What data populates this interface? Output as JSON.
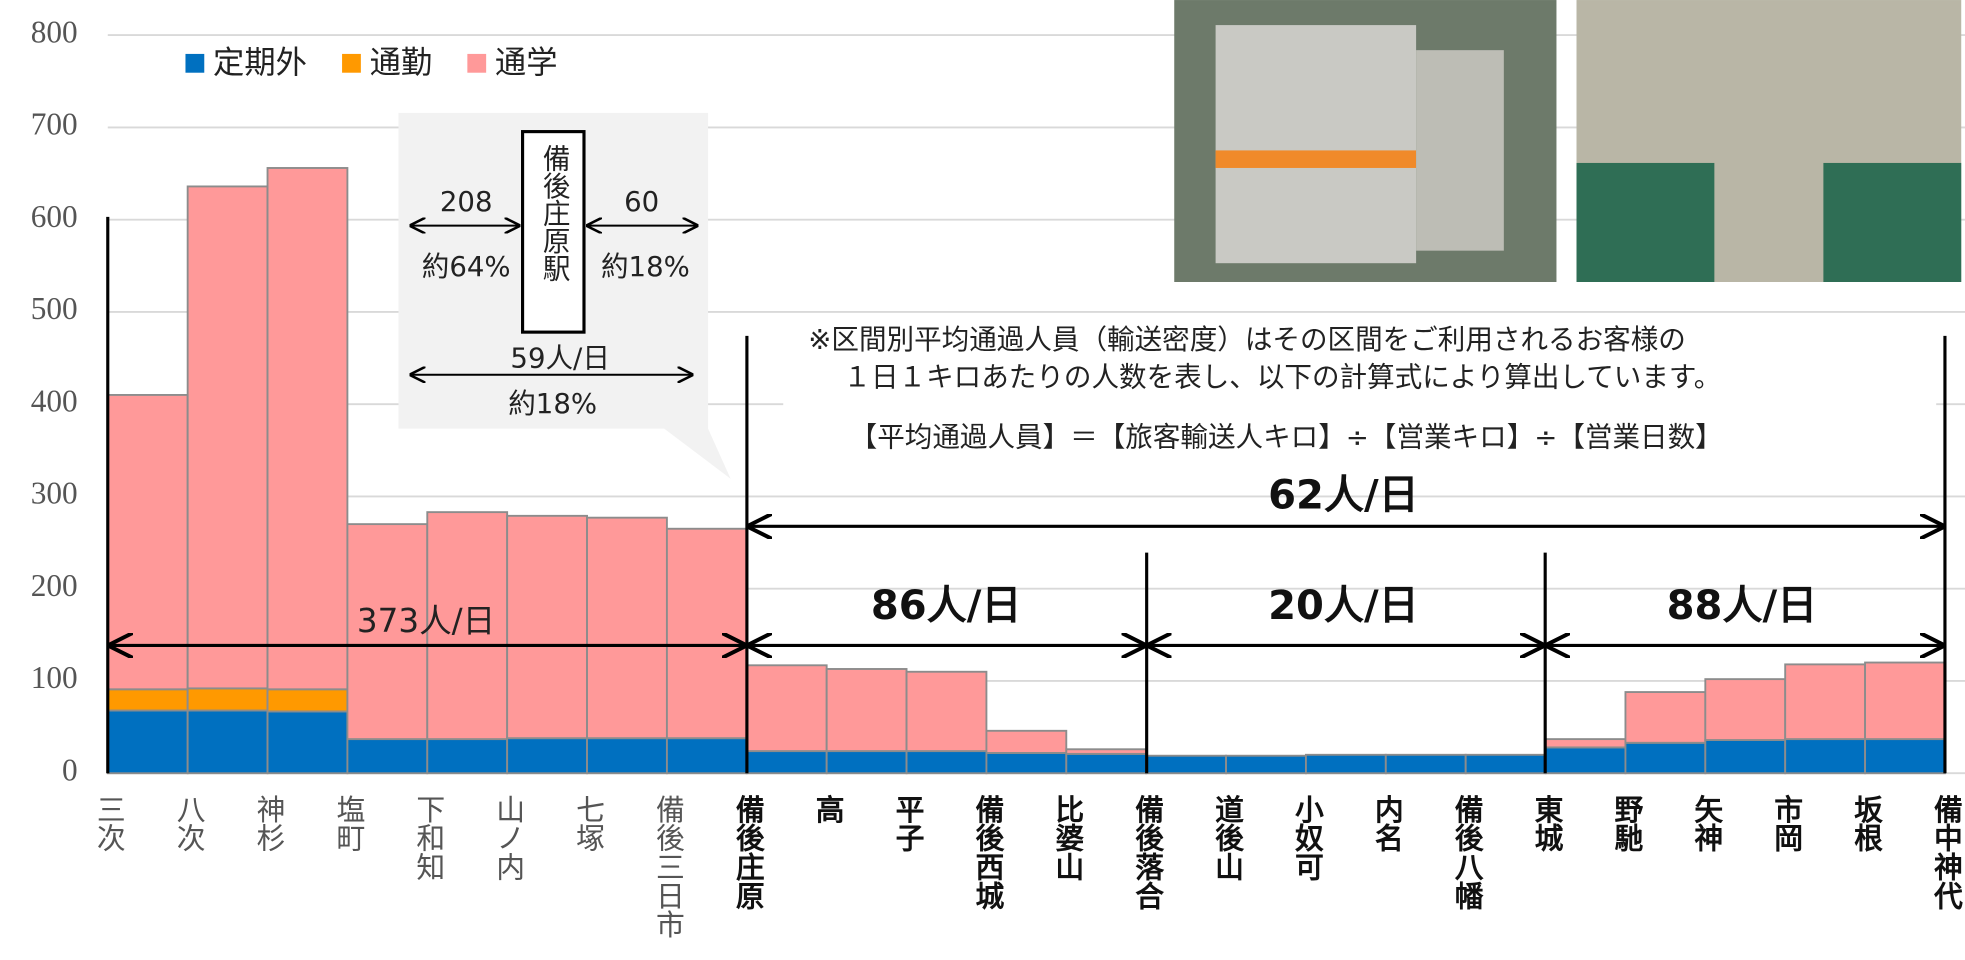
{
  "chart_data": {
    "type": "histogram",
    "stacked": true,
    "bins": [
      "三次",
      "八次",
      "神杉",
      "塩町",
      "下和知",
      "山ノ内",
      "七塚",
      "備後三日市",
      "備後庄原",
      "高",
      "平子",
      "備後西城",
      "比婆山",
      "備後落合",
      "道後山",
      "小奴可",
      "内名",
      "備後八幡",
      "東城",
      "野馳",
      "矢神",
      "市岡",
      "坂根",
      "備中神代"
    ],
    "series": [
      {
        "name": "定期外",
        "color": "#0070c0",
        "values": [
          68,
          68,
          67,
          37,
          37,
          38,
          38,
          38,
          24,
          24,
          24,
          22,
          21,
          19,
          19,
          20,
          20,
          20,
          28,
          33,
          36,
          37,
          37
        ]
      },
      {
        "name": "通勤",
        "color": "#ff9900",
        "values": [
          23,
          24,
          24,
          0,
          0,
          0,
          0,
          0,
          0,
          0,
          0,
          0,
          0,
          0,
          0,
          0,
          0,
          0,
          0,
          0,
          0,
          0,
          0
        ]
      },
      {
        "name": "通学",
        "color": "#ff9999",
        "values": [
          319,
          544,
          565,
          233,
          246,
          241,
          239,
          227,
          93,
          89,
          86,
          24,
          5,
          0,
          0,
          0,
          0,
          0,
          9,
          55,
          66,
          81,
          83
        ]
      }
    ],
    "ylim": [
      0,
      800
    ],
    "yticks": [
      0,
      100,
      200,
      300,
      400,
      500,
      600,
      700,
      800
    ],
    "grid": true,
    "annotations": {
      "section_labels": [
        "373人/日",
        "86人/日",
        "20人/日",
        "88人/日",
        "62人/日"
      ],
      "callout": {
        "station": "備後庄原駅",
        "left_value": "208",
        "left_share": "約64%",
        "right_value": "60",
        "right_share": "約18%",
        "through_value": "59人/日",
        "through_share": "約18%"
      },
      "note_lines": [
        "※区間別平均通過人員（輸送密度）はその区間をご利用されるお客様の",
        "１日１キロあたりの人数を表し、以下の計算式により算出しています。"
      ],
      "formula": "【平均通過人員】＝【旅客輸送人キロ】÷【営業キロ】÷【営業日数】"
    }
  }
}
